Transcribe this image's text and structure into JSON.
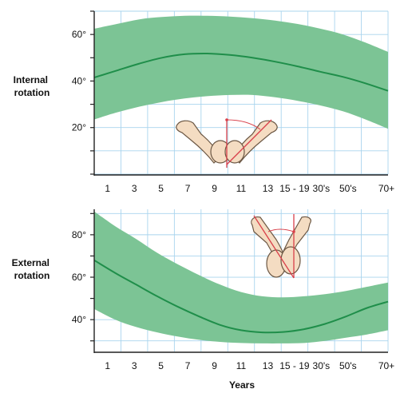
{
  "chart_data": [
    {
      "type": "area",
      "ylabel": "Internal rotation",
      "x_tick_labels": [
        "1",
        "3",
        "5",
        "7",
        "9",
        "11",
        "13",
        "15 - 19",
        "30's",
        "50's",
        "70+"
      ],
      "y_tick_labels": [
        "20°",
        "40°",
        "60°"
      ],
      "ylim": [
        0,
        70
      ],
      "grid": true,
      "band_color": "#7cc495",
      "line_color": "#1f8e4a",
      "grid_color": "#a9d4ee",
      "mean": [
        41.5,
        44.5,
        47.5,
        50,
        51.5,
        51.8,
        51.2,
        50,
        48.3,
        46.3,
        44,
        41.8,
        39,
        35.8
      ],
      "upper": [
        62.5,
        64.5,
        66.5,
        67.5,
        68,
        68,
        67.7,
        67,
        66,
        64.5,
        62.5,
        60,
        56.5,
        52.5
      ],
      "lower": [
        23.5,
        26.5,
        29,
        31,
        32.5,
        33.5,
        34,
        34,
        33,
        31.5,
        29.5,
        27,
        23.5,
        19.5
      ]
    },
    {
      "type": "area",
      "ylabel": "External rotation",
      "xlabel": "Years",
      "x_tick_labels": [
        "1",
        "3",
        "5",
        "7",
        "9",
        "11",
        "13",
        "15 - 19",
        "30's",
        "50's",
        "70+"
      ],
      "y_tick_labels": [
        "40°",
        "60°",
        "80°"
      ],
      "ylim": [
        25,
        92
      ],
      "grid": true,
      "band_color": "#7cc495",
      "line_color": "#1f8e4a",
      "grid_color": "#a9d4ee",
      "mean": [
        68,
        62,
        56.5,
        51,
        46,
        41.5,
        37.5,
        35,
        34,
        34.2,
        35.5,
        38,
        41.5,
        45.5,
        48.5
      ],
      "upper": [
        91,
        84,
        78,
        71.5,
        66,
        61,
        56.5,
        53,
        51,
        50.5,
        51,
        52,
        53.5,
        55.5,
        57.5
      ],
      "lower": [
        45,
        40,
        36.5,
        34,
        32,
        30.5,
        29.5,
        29,
        28.8,
        28.8,
        29,
        30,
        31.5,
        33,
        35
      ]
    }
  ]
}
